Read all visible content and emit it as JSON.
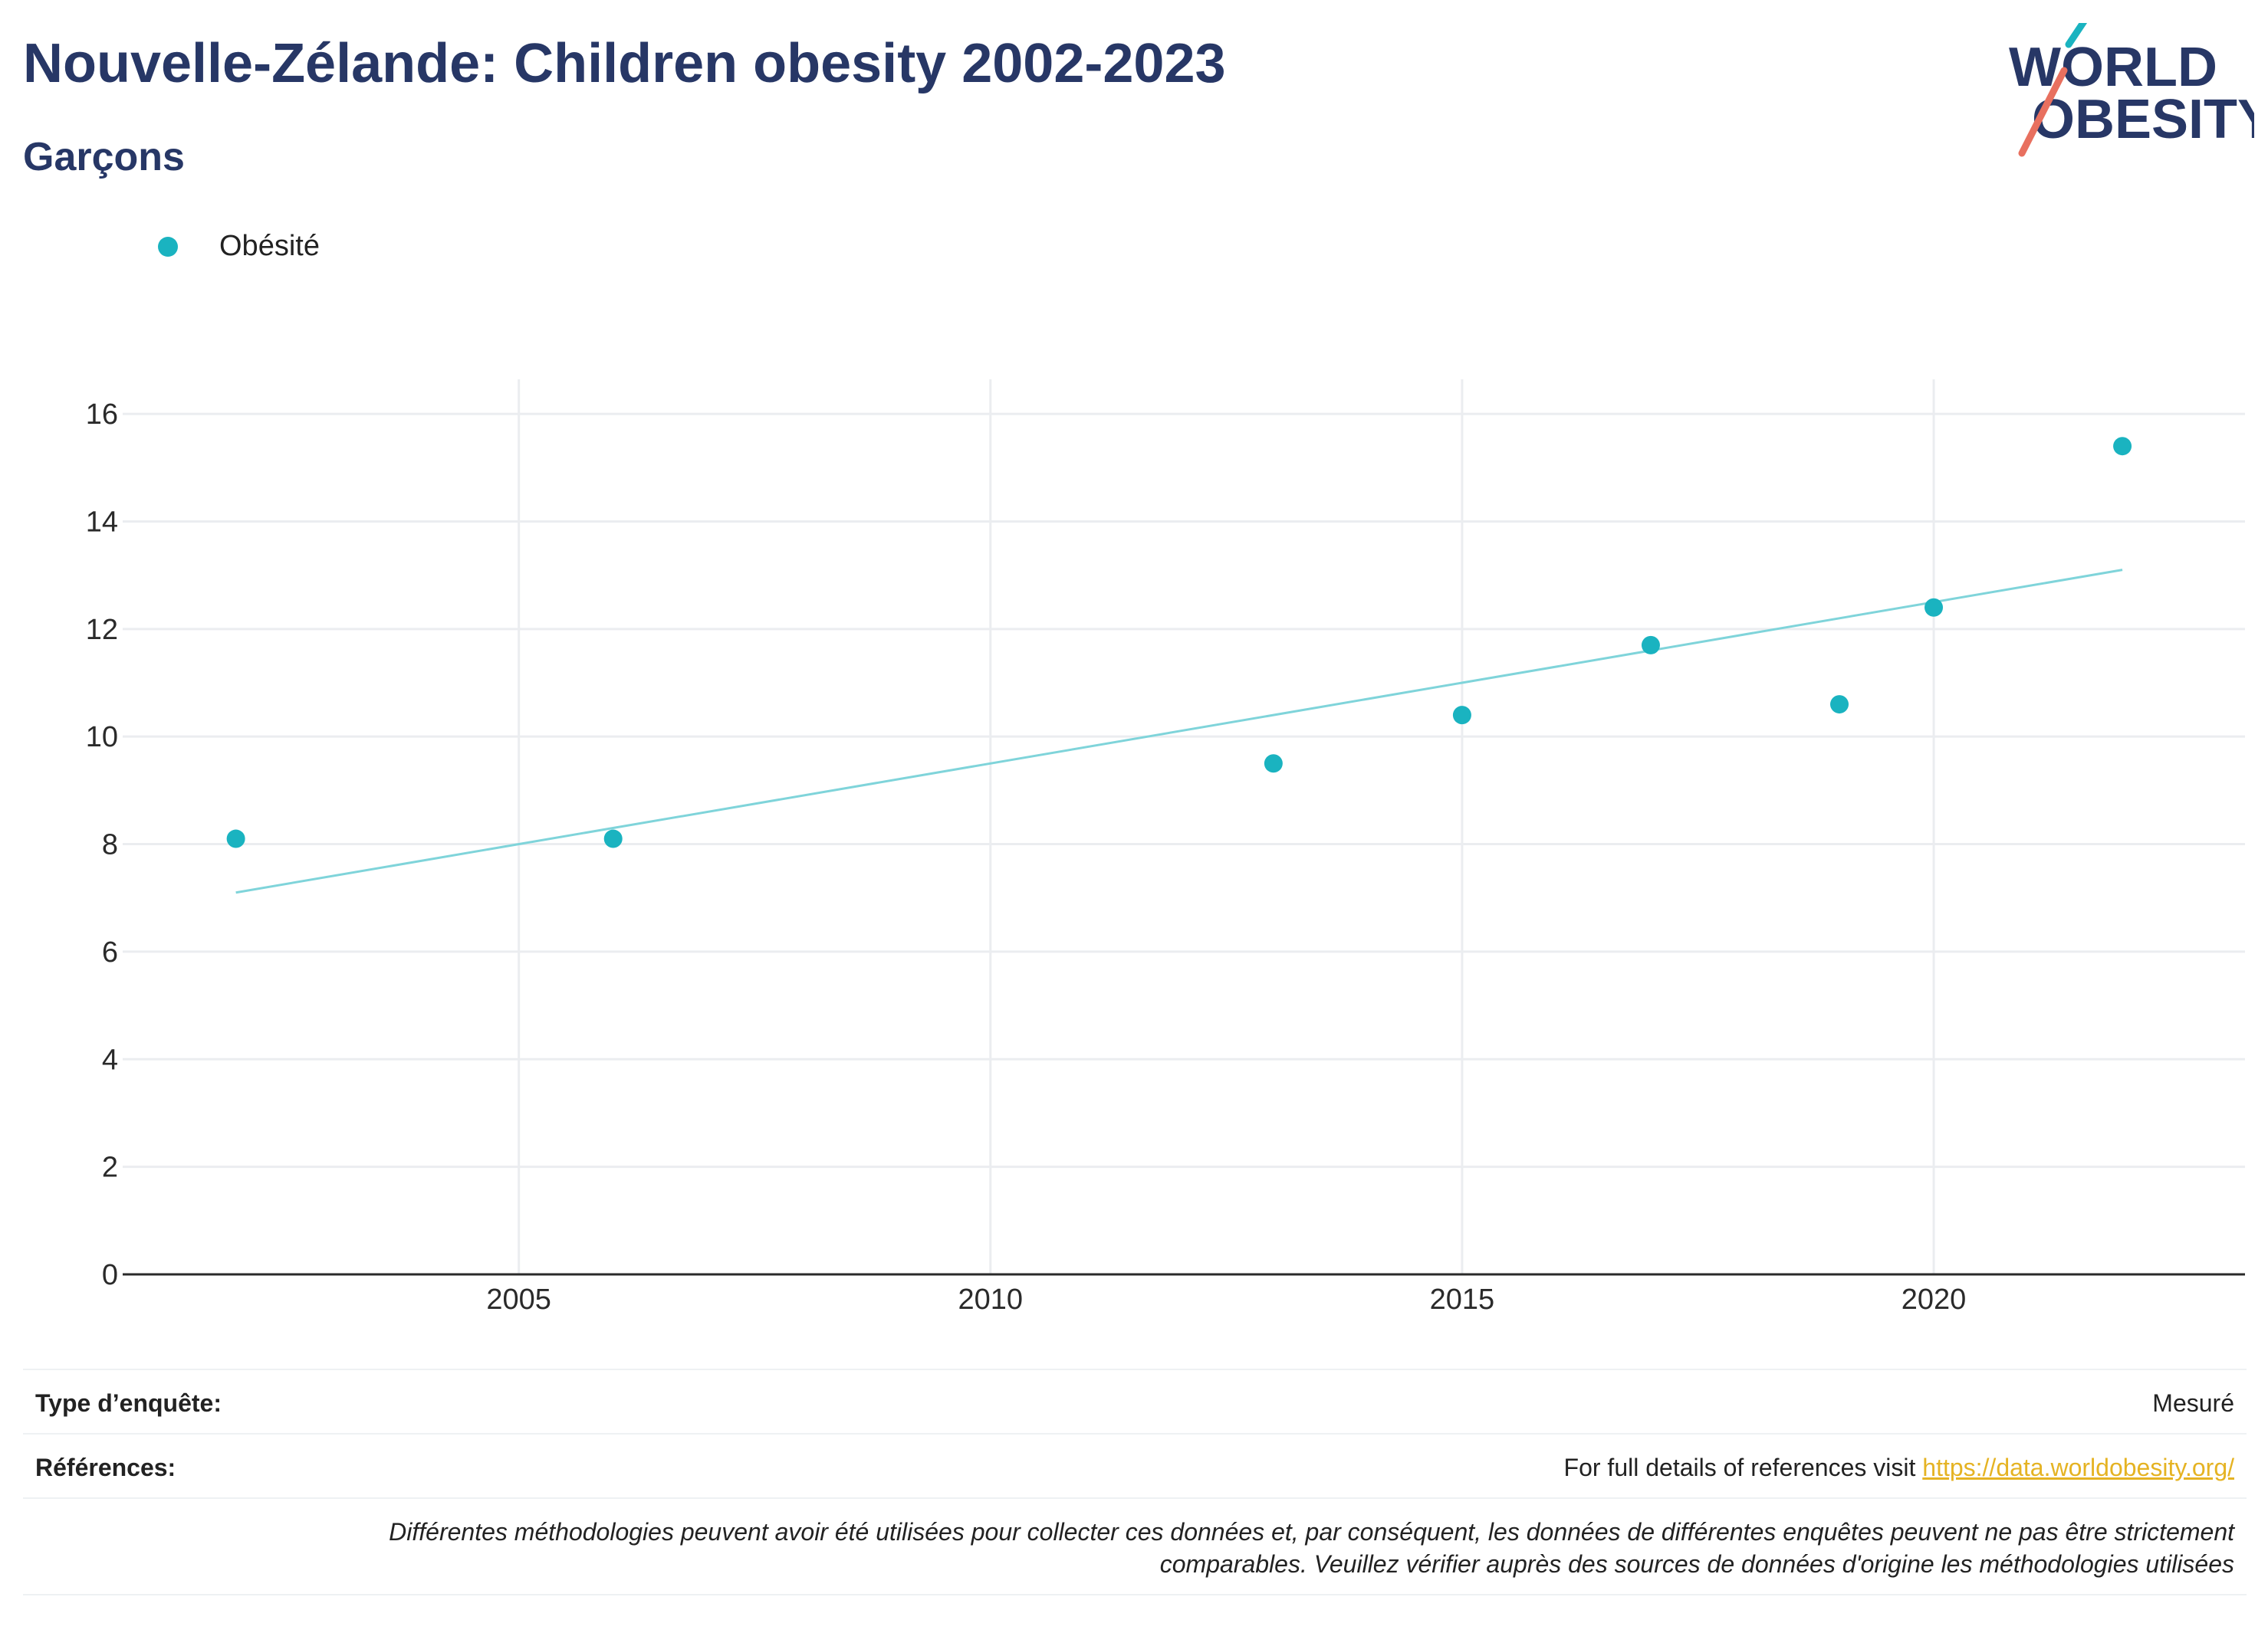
{
  "header": {
    "title": "Nouvelle-Zélande: Children obesity 2002-2023",
    "subtitle": "Garçons"
  },
  "logo": {
    "line1": "WORLD",
    "line2": "OBESITY"
  },
  "legend": {
    "label": "Obésité"
  },
  "colors": {
    "series": "#1ab3c0",
    "trend": "#7fd4da",
    "title": "#273766",
    "link": "#e5b323",
    "grid": "#ebedf0"
  },
  "chart_data": {
    "type": "scatter",
    "title": "Nouvelle-Zélande: Children obesity 2002-2023",
    "subtitle": "Garçons",
    "series": [
      {
        "name": "Obésité",
        "points": [
          {
            "x": 2002,
            "y": 8.1
          },
          {
            "x": 2006,
            "y": 8.1
          },
          {
            "x": 2013,
            "y": 9.5
          },
          {
            "x": 2015,
            "y": 10.4
          },
          {
            "x": 2017,
            "y": 11.7
          },
          {
            "x": 2019,
            "y": 10.6
          },
          {
            "x": 2020,
            "y": 12.4
          },
          {
            "x": 2022,
            "y": 15.4
          }
        ]
      }
    ],
    "trendline": {
      "start": {
        "x": 2002,
        "y": 7.1
      },
      "end": {
        "x": 2022,
        "y": 13.1
      }
    },
    "x_ticks": [
      2005,
      2010,
      2015,
      2020
    ],
    "y_ticks": [
      0,
      2,
      4,
      6,
      8,
      10,
      12,
      14,
      16
    ],
    "xlim": [
      2000.8,
      2023.3
    ],
    "ylim": [
      0,
      16.5
    ],
    "grid": true,
    "legend_position": "top-left"
  },
  "footer": {
    "survey_type_label": "Type d’enquête:",
    "survey_type_value": "Mesuré",
    "references_label": "Références:",
    "references_text": "For full details of references visit ",
    "references_link": "https://data.worldobesity.org/",
    "note_line1": "Différentes méthodologies peuvent avoir été utilisées pour collecter ces données et, par conséquent, les données de différentes enquêtes peuvent ne pas être strictement",
    "note_line2": "comparables. Veuillez vérifier auprès des sources de données d'origine les méthodologies utilisées"
  }
}
